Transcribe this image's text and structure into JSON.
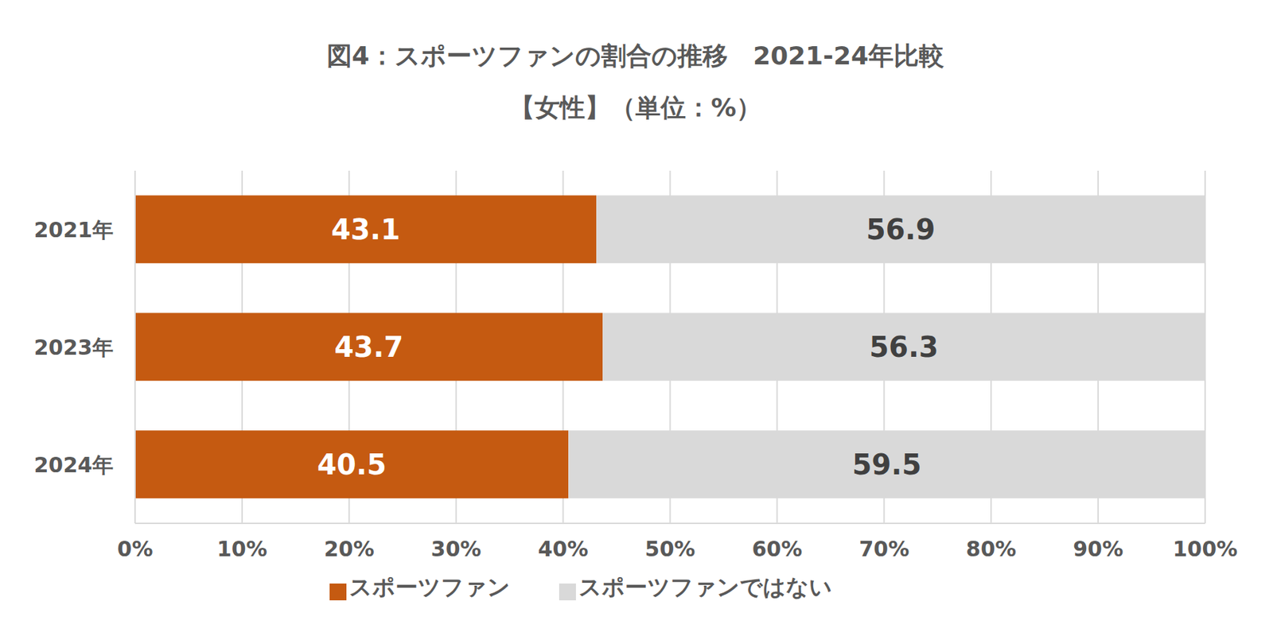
{
  "chart_data": {
    "type": "bar",
    "title": "図4：スポーツファンの割合の推移　2021-24年比較",
    "subtitle": "【女性】（単位：%）",
    "orientation": "horizontal",
    "stacked": true,
    "data_labels": true,
    "grid": true,
    "legend": "bottom",
    "categories": [
      "2021年",
      "2023年",
      "2024年"
    ],
    "series": [
      {
        "name": "スポーツファン",
        "color": "#c55a11",
        "values": [
          43.1,
          43.7,
          40.5
        ]
      },
      {
        "name": "スポーツファンではない",
        "color": "#d9d9d9",
        "values": [
          56.9,
          56.3,
          59.5
        ]
      }
    ],
    "xlim": [
      0,
      100
    ],
    "xticks": [
      {
        "value": 0,
        "label": "0%"
      },
      {
        "value": 10,
        "label": "10%"
      },
      {
        "value": 20,
        "label": "20%"
      },
      {
        "value": 30,
        "label": "30%"
      },
      {
        "value": 40,
        "label": "40%"
      },
      {
        "value": 50,
        "label": "50%"
      },
      {
        "value": 60,
        "label": "60%"
      },
      {
        "value": 70,
        "label": "70%"
      },
      {
        "value": 80,
        "label": "80%"
      },
      {
        "value": 90,
        "label": "90%"
      },
      {
        "value": 100,
        "label": "100%"
      }
    ]
  }
}
